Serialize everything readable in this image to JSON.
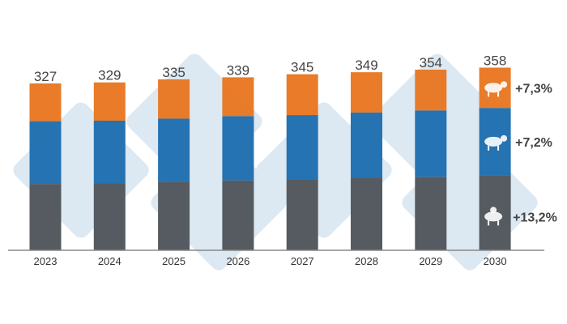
{
  "chart_data": {
    "type": "bar",
    "stacked": true,
    "categories": [
      "2023",
      "2024",
      "2025",
      "2026",
      "2027",
      "2028",
      "2029",
      "2030"
    ],
    "totals": [
      327,
      329,
      335,
      339,
      345,
      349,
      354,
      358
    ],
    "series": [
      {
        "icon": "chicken-icon",
        "color": "#51565C",
        "values": [
          130,
          131,
          134,
          137,
          139,
          142,
          144,
          147
        ],
        "change_label": "+13,2%"
      },
      {
        "icon": "pig-icon",
        "color": "#1F6EB0",
        "values": [
          123,
          123,
          124,
          126,
          126,
          128,
          130,
          132
        ],
        "change_label": "+7,2%"
      },
      {
        "icon": "cow-icon",
        "color": "#E87722",
        "values": [
          74,
          75,
          77,
          76,
          80,
          79,
          80,
          79
        ],
        "change_label": "+7,3%"
      }
    ],
    "ylim": [
      0,
      380
    ],
    "grid": false,
    "legend": "none",
    "title": "",
    "xlabel": "",
    "ylabel": ""
  }
}
